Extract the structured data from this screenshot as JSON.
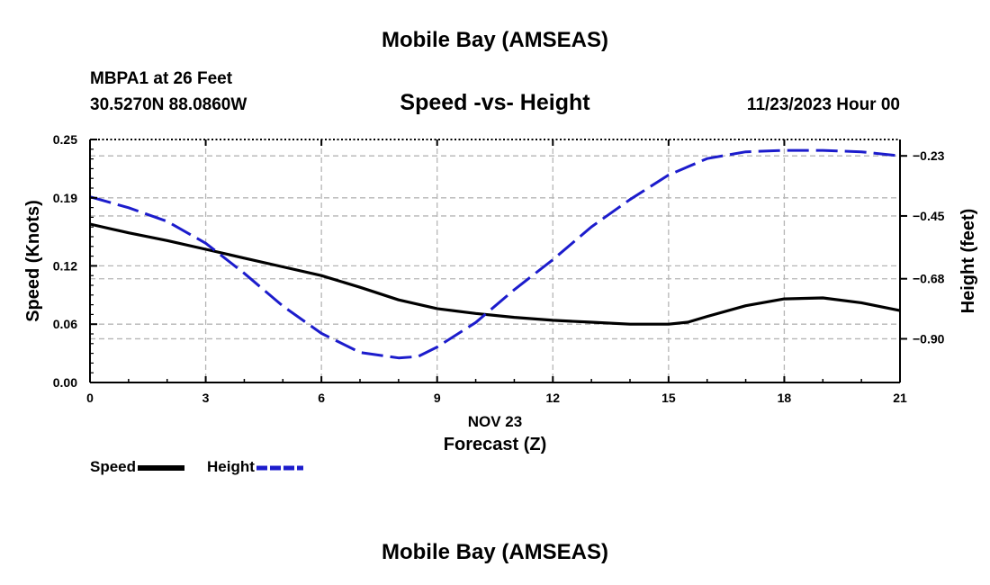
{
  "header": {
    "title": "Mobile Bay (AMSEAS)",
    "station_label": "MBPA1 at 26 Feet",
    "coordinates": "30.5270N  88.0860W",
    "subtitle": "Speed -vs- Height",
    "timestamp": "11/23/2023 Hour 00"
  },
  "footer": {
    "title": "Mobile Bay (AMSEAS)"
  },
  "chart_data": {
    "type": "line",
    "title": "Speed -vs- Height",
    "xlabel_date": "NOV 23",
    "xlabel": "Forecast (Z)",
    "ylabel": "Speed (Knots)",
    "y2label": "Height (feet)",
    "xlim": [
      0,
      21
    ],
    "ylim": [
      0,
      0.25
    ],
    "y2lim": [
      -1.06,
      -0.17
    ],
    "x_ticks": [
      0,
      3,
      6,
      9,
      12,
      15,
      18,
      21
    ],
    "y_ticks": [
      0.0,
      0.06,
      0.12,
      0.19,
      0.25
    ],
    "y_tick_labels": [
      "0.00",
      "0.06",
      "0.12",
      "0.19",
      "0.25"
    ],
    "y2_ticks": [
      -0.23,
      -0.45,
      -0.68,
      -0.9
    ],
    "y2_tick_labels": [
      "−0.23",
      "−0.45",
      "−0.68",
      "−0.90"
    ],
    "grid": true,
    "series": [
      {
        "name": "Speed",
        "axis": "left",
        "color": "#000000",
        "style": "solid",
        "x": [
          0,
          1,
          2,
          3,
          4,
          5,
          6,
          7,
          8,
          9,
          10,
          11,
          12,
          13,
          14,
          15,
          15.5,
          16,
          17,
          18,
          19,
          20,
          21
        ],
        "values": [
          0.163,
          0.154,
          0.146,
          0.137,
          0.128,
          0.119,
          0.11,
          0.098,
          0.085,
          0.076,
          0.071,
          0.067,
          0.064,
          0.062,
          0.06,
          0.06,
          0.062,
          0.068,
          0.079,
          0.086,
          0.087,
          0.082,
          0.074
        ]
      },
      {
        "name": "Height",
        "axis": "right",
        "color": "#1c1ccc",
        "style": "dashed",
        "x": [
          0,
          1,
          2,
          3,
          4,
          5,
          6,
          7,
          8,
          8.5,
          9,
          10,
          11,
          12,
          13,
          14,
          15,
          16,
          17,
          18,
          19,
          20,
          21
        ],
        "values": [
          -0.38,
          -0.42,
          -0.47,
          -0.55,
          -0.66,
          -0.78,
          -0.88,
          -0.95,
          -0.97,
          -0.965,
          -0.93,
          -0.84,
          -0.72,
          -0.61,
          -0.49,
          -0.39,
          -0.3,
          -0.24,
          -0.215,
          -0.21,
          -0.21,
          -0.215,
          -0.23
        ]
      }
    ],
    "legend": {
      "position": "bottom-left",
      "entries": [
        "Speed",
        "Height"
      ]
    }
  }
}
